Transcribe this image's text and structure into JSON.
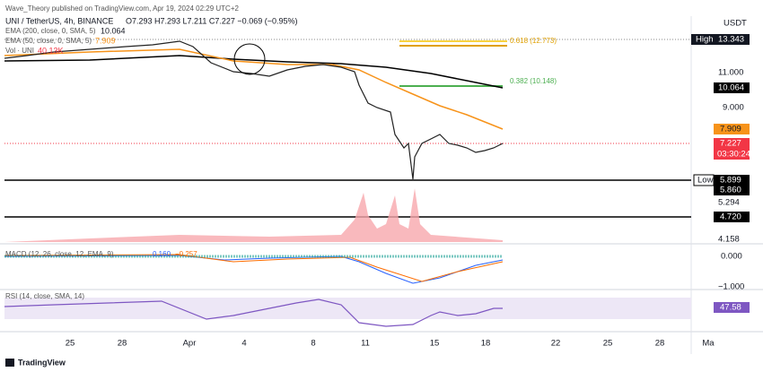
{
  "header": {
    "byline": "Wave_Theory published on TradingView.com, Apr 19, 2024 02:29 UTC+2"
  },
  "legend": {
    "symbol": "UNI / TetherUS, 4h, BINANCE",
    "ohlc": "O7.293 H7.293 L7.211 C7.227 −0.069 (−0.95%)",
    "ema200": "EMA (200, close, 0, SMA, 5)",
    "ema200_value": "10.064",
    "ema50": "EMA (50, close, 0, SMA, 5)",
    "ema50_value": "7.909",
    "volume": "Vol · UNI",
    "volume_value": "40.13K"
  },
  "fib": {
    "upper": "0.618 (12.773)",
    "lower": "0.382 (10.148)"
  },
  "price_axis": {
    "unit": "USDT",
    "ticks": [
      "11.000",
      "9.000",
      "5.294",
      "4.158"
    ],
    "high_tag": "High",
    "high": "13.343",
    "ema200": "10.064",
    "ema50": "7.909",
    "last": "7.227",
    "countdown": "03:30:24",
    "low_tag": "Low",
    "low": "5.899",
    "low_close": "5.860",
    "support": "4.720"
  },
  "macd": {
    "label": "MACD (12, 26, close, 12, EMA, 9)",
    "signal": "0.160",
    "histogram": "−0.257",
    "ticks": [
      "0.000",
      "−1.000"
    ]
  },
  "rsi": {
    "label": "RSI (14, close, SMA, 14)",
    "value": "47.58"
  },
  "time_axis": [
    "25",
    "28",
    "Apr",
    "4",
    "8",
    "11",
    "15",
    "18",
    "22",
    "25",
    "28",
    "Ma"
  ],
  "footer": "TradingView"
}
